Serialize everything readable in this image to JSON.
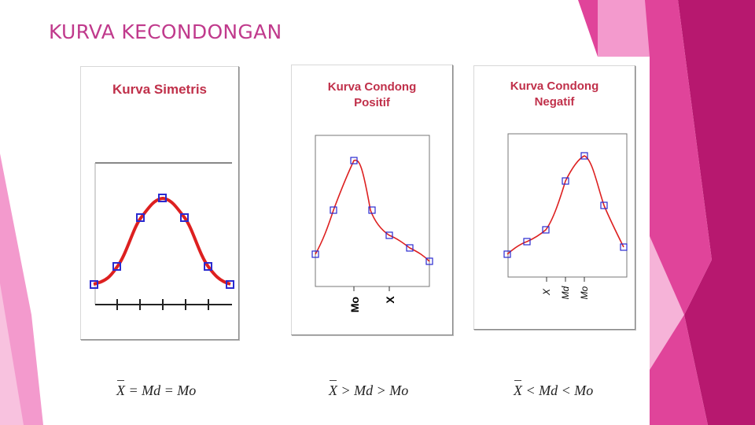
{
  "slide": {
    "title": "KURVA KECONDONGAN"
  },
  "colors": {
    "accent_pink": "#e0449a",
    "light_pink": "#f39acd",
    "magenta": "#b7186f",
    "curve_red": "#dd2020",
    "marker_blue": "#2a2ad0",
    "chart_title_red": "#c0304a"
  },
  "charts": [
    {
      "id": "simetris",
      "title": "Kurva Simetris",
      "formula": {
        "x": "X",
        "rest": " = Md = Mo"
      },
      "tick_labels": []
    },
    {
      "id": "condong-positif",
      "title_lines": [
        "Kurva Condong",
        "Positif"
      ],
      "formula": {
        "x": "X",
        "rest": " > Md > Mo"
      },
      "tick_labels": [
        "Mo",
        "X"
      ]
    },
    {
      "id": "condong-negatif",
      "title_lines": [
        "Kurva Condong",
        "Negatif"
      ],
      "formula": {
        "x": "X",
        "rest": " < Md < Mo"
      },
      "tick_labels": [
        "X",
        "Md",
        "Mo"
      ]
    }
  ]
}
